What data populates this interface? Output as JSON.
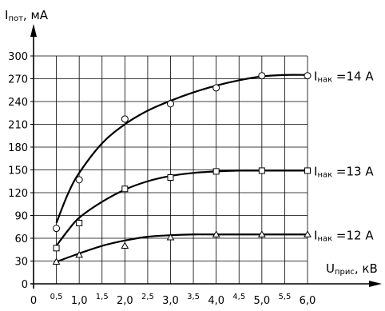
{
  "chart_data": {
    "type": "line",
    "ylabel": {
      "main": "I",
      "sub": "пот",
      "rest": ", мА"
    },
    "xlabel": {
      "main": "U",
      "sub": "прис",
      "rest": ", кВ"
    },
    "ylim": [
      0,
      300
    ],
    "xlim": [
      0,
      6
    ],
    "grid": true,
    "y_ticks": [
      "0",
      "30",
      "60",
      "90",
      "120",
      "150",
      "180",
      "210",
      "240",
      "270",
      "300"
    ],
    "x_ticks_major": [
      "0",
      "1,0",
      "2,0",
      "3,0",
      "4,0",
      "5,0",
      "6,0"
    ],
    "x_ticks_minor": [
      "0,5",
      "1,5",
      "2,5",
      "3,5",
      "4,5",
      "5,5"
    ],
    "series": [
      {
        "name": {
          "main": "I",
          "sub": "нак",
          "rest": " =14 А"
        },
        "marker": "circle",
        "points": [
          [
            0.5,
            73
          ],
          [
            1.0,
            137
          ],
          [
            2.0,
            217
          ],
          [
            3.0,
            237
          ],
          [
            4.0,
            258
          ],
          [
            5.0,
            274
          ],
          [
            6.0,
            274
          ]
        ],
        "curve": [
          [
            0.5,
            80
          ],
          [
            0.75,
            118
          ],
          [
            1.0,
            146
          ],
          [
            1.5,
            185
          ],
          [
            2.0,
            210
          ],
          [
            2.5,
            228
          ],
          [
            3.0,
            241
          ],
          [
            3.5,
            252
          ],
          [
            4.0,
            261
          ],
          [
            4.5,
            268
          ],
          [
            5.0,
            273
          ],
          [
            5.5,
            275
          ],
          [
            6.0,
            275
          ]
        ]
      },
      {
        "name": {
          "main": "I",
          "sub": "нак",
          "rest": " =13 А"
        },
        "marker": "square",
        "points": [
          [
            0.5,
            47
          ],
          [
            1.0,
            80
          ],
          [
            2.0,
            125
          ],
          [
            3.0,
            140
          ],
          [
            4.0,
            148
          ],
          [
            5.0,
            149
          ],
          [
            6.0,
            149
          ]
        ],
        "curve": [
          [
            0.5,
            50
          ],
          [
            0.75,
            70
          ],
          [
            1.0,
            87
          ],
          [
            1.5,
            108
          ],
          [
            2.0,
            124
          ],
          [
            2.5,
            135
          ],
          [
            3.0,
            142
          ],
          [
            3.5,
            146
          ],
          [
            4.0,
            148
          ],
          [
            4.5,
            149
          ],
          [
            5.0,
            149
          ],
          [
            6.0,
            149
          ]
        ]
      },
      {
        "name": {
          "main": "I",
          "sub": "нак",
          "rest": " =12 А"
        },
        "marker": "triangle",
        "points": [
          [
            0.5,
            29
          ],
          [
            1.0,
            38
          ],
          [
            2.0,
            50
          ],
          [
            3.0,
            61
          ],
          [
            4.0,
            65
          ],
          [
            5.0,
            65
          ],
          [
            6.0,
            65
          ]
        ],
        "curve": [
          [
            0.5,
            29
          ],
          [
            1.0,
            40
          ],
          [
            1.5,
            50
          ],
          [
            2.0,
            57
          ],
          [
            2.5,
            62
          ],
          [
            3.0,
            64
          ],
          [
            3.5,
            65
          ],
          [
            4.0,
            65
          ],
          [
            6.0,
            65
          ]
        ]
      }
    ]
  }
}
